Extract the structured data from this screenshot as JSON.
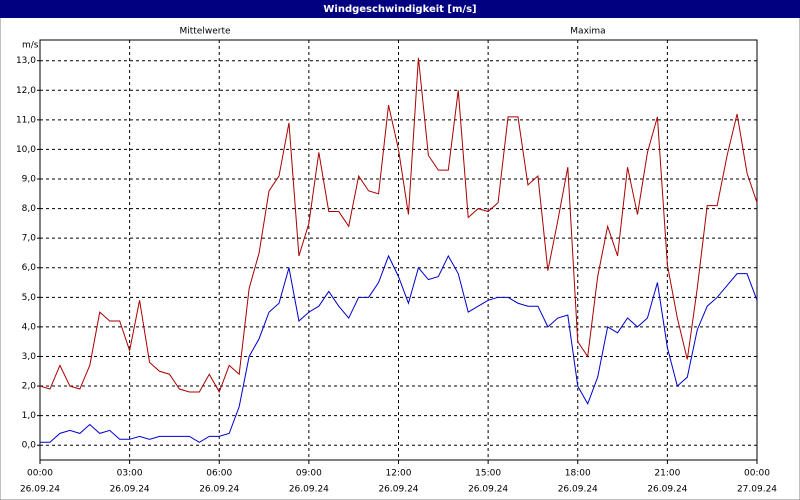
{
  "chart_data": {
    "type": "line",
    "title": "Windgeschwindigkeit [m/s]",
    "y_label": "m/s",
    "x": [
      0,
      20,
      40,
      60,
      80,
      100,
      120,
      140,
      160,
      180,
      200,
      220,
      240,
      260,
      280,
      300,
      320,
      340,
      360,
      380,
      400,
      420,
      440,
      460,
      480,
      500,
      520,
      540,
      560,
      580,
      600,
      620,
      640,
      660,
      680,
      700,
      720,
      740,
      760,
      780,
      800,
      820,
      840,
      860,
      880,
      900,
      920,
      940,
      960,
      980,
      1000,
      1020,
      1040,
      1060,
      1080,
      1100,
      1120,
      1140,
      1160,
      1180,
      1200,
      1220,
      1240,
      1260,
      1280,
      1300,
      1320,
      1340,
      1360,
      1380,
      1400,
      1420,
      1440
    ],
    "series": [
      {
        "name": "Mittelwerte",
        "color": "#0000cc",
        "values": [
          0.1,
          0.1,
          0.4,
          0.5,
          0.4,
          0.7,
          0.4,
          0.5,
          0.2,
          0.2,
          0.3,
          0.2,
          0.3,
          0.3,
          0.3,
          0.3,
          0.1,
          0.3,
          0.3,
          0.4,
          1.3,
          3.0,
          3.6,
          4.5,
          4.8,
          6.0,
          4.2,
          4.5,
          4.7,
          5.2,
          4.7,
          4.3,
          5.0,
          5.0,
          5.5,
          6.4,
          5.7,
          4.8,
          6.0,
          5.6,
          5.7,
          6.4,
          5.8,
          4.5,
          4.7,
          4.9,
          5.0,
          5.0,
          4.8,
          4.7,
          4.7,
          4.0,
          4.3,
          4.4,
          2.0,
          1.4,
          2.3,
          4.0,
          3.8,
          4.3,
          4.0,
          4.3,
          5.5,
          3.3,
          2.0,
          2.3,
          3.9,
          4.7,
          5.0,
          5.4,
          5.8,
          5.8,
          4.9
        ]
      },
      {
        "name": "Maxima",
        "color": "#aa0000",
        "values": [
          2.0,
          1.9,
          2.7,
          2.0,
          1.9,
          2.7,
          4.5,
          4.2,
          4.2,
          3.2,
          4.9,
          2.8,
          2.5,
          2.4,
          1.9,
          1.8,
          1.8,
          2.4,
          1.8,
          2.7,
          2.4,
          5.3,
          6.5,
          8.6,
          9.1,
          10.9,
          6.4,
          7.5,
          9.9,
          7.9,
          7.9,
          7.4,
          9.1,
          8.6,
          8.5,
          11.5,
          10.0,
          7.8,
          13.1,
          9.8,
          9.3,
          9.3,
          12.0,
          7.7,
          8.0,
          7.9,
          8.2,
          11.1,
          11.1,
          8.8,
          9.1,
          5.9,
          7.6,
          9.4,
          3.5,
          3.0,
          5.7,
          7.4,
          6.4,
          9.4,
          7.8,
          9.9,
          11.1,
          6.1,
          4.3,
          2.9,
          5.3,
          8.1,
          8.1,
          9.8,
          11.2,
          9.2,
          8.2
        ]
      }
    ],
    "xlim": [
      0,
      1440
    ],
    "xticks": [
      {
        "value": 0,
        "label": "00:00"
      },
      {
        "value": 180,
        "label": "03:00"
      },
      {
        "value": 360,
        "label": "06:00"
      },
      {
        "value": 540,
        "label": "09:00"
      },
      {
        "value": 720,
        "label": "12:00"
      },
      {
        "value": 900,
        "label": "15:00"
      },
      {
        "value": 1080,
        "label": "18:00"
      },
      {
        "value": 1260,
        "label": "21:00"
      },
      {
        "value": 1440,
        "label": "00:00"
      }
    ],
    "xtick_dates": [
      "26.09.24",
      "26.09.24",
      "26.09.24",
      "26.09.24",
      "26.09.24",
      "26.09.24",
      "26.09.24",
      "26.09.24",
      "27.09.24"
    ],
    "ylim": [
      -0.5,
      13.7
    ],
    "yticks": [
      {
        "value": 0,
        "label": "0,0"
      },
      {
        "value": 1,
        "label": "1,0"
      },
      {
        "value": 2,
        "label": "2,0"
      },
      {
        "value": 3,
        "label": "3,0"
      },
      {
        "value": 4,
        "label": "4,0"
      },
      {
        "value": 5,
        "label": "5,0"
      },
      {
        "value": 6,
        "label": "6,0"
      },
      {
        "value": 7,
        "label": "7,0"
      },
      {
        "value": 8,
        "label": "8,0"
      },
      {
        "value": 9,
        "label": "9,0"
      },
      {
        "value": 10,
        "label": "10,0"
      },
      {
        "value": 11,
        "label": "11,0"
      },
      {
        "value": 12,
        "label": "12,0"
      },
      {
        "value": 13,
        "label": "13,0"
      }
    ],
    "grid": true
  }
}
